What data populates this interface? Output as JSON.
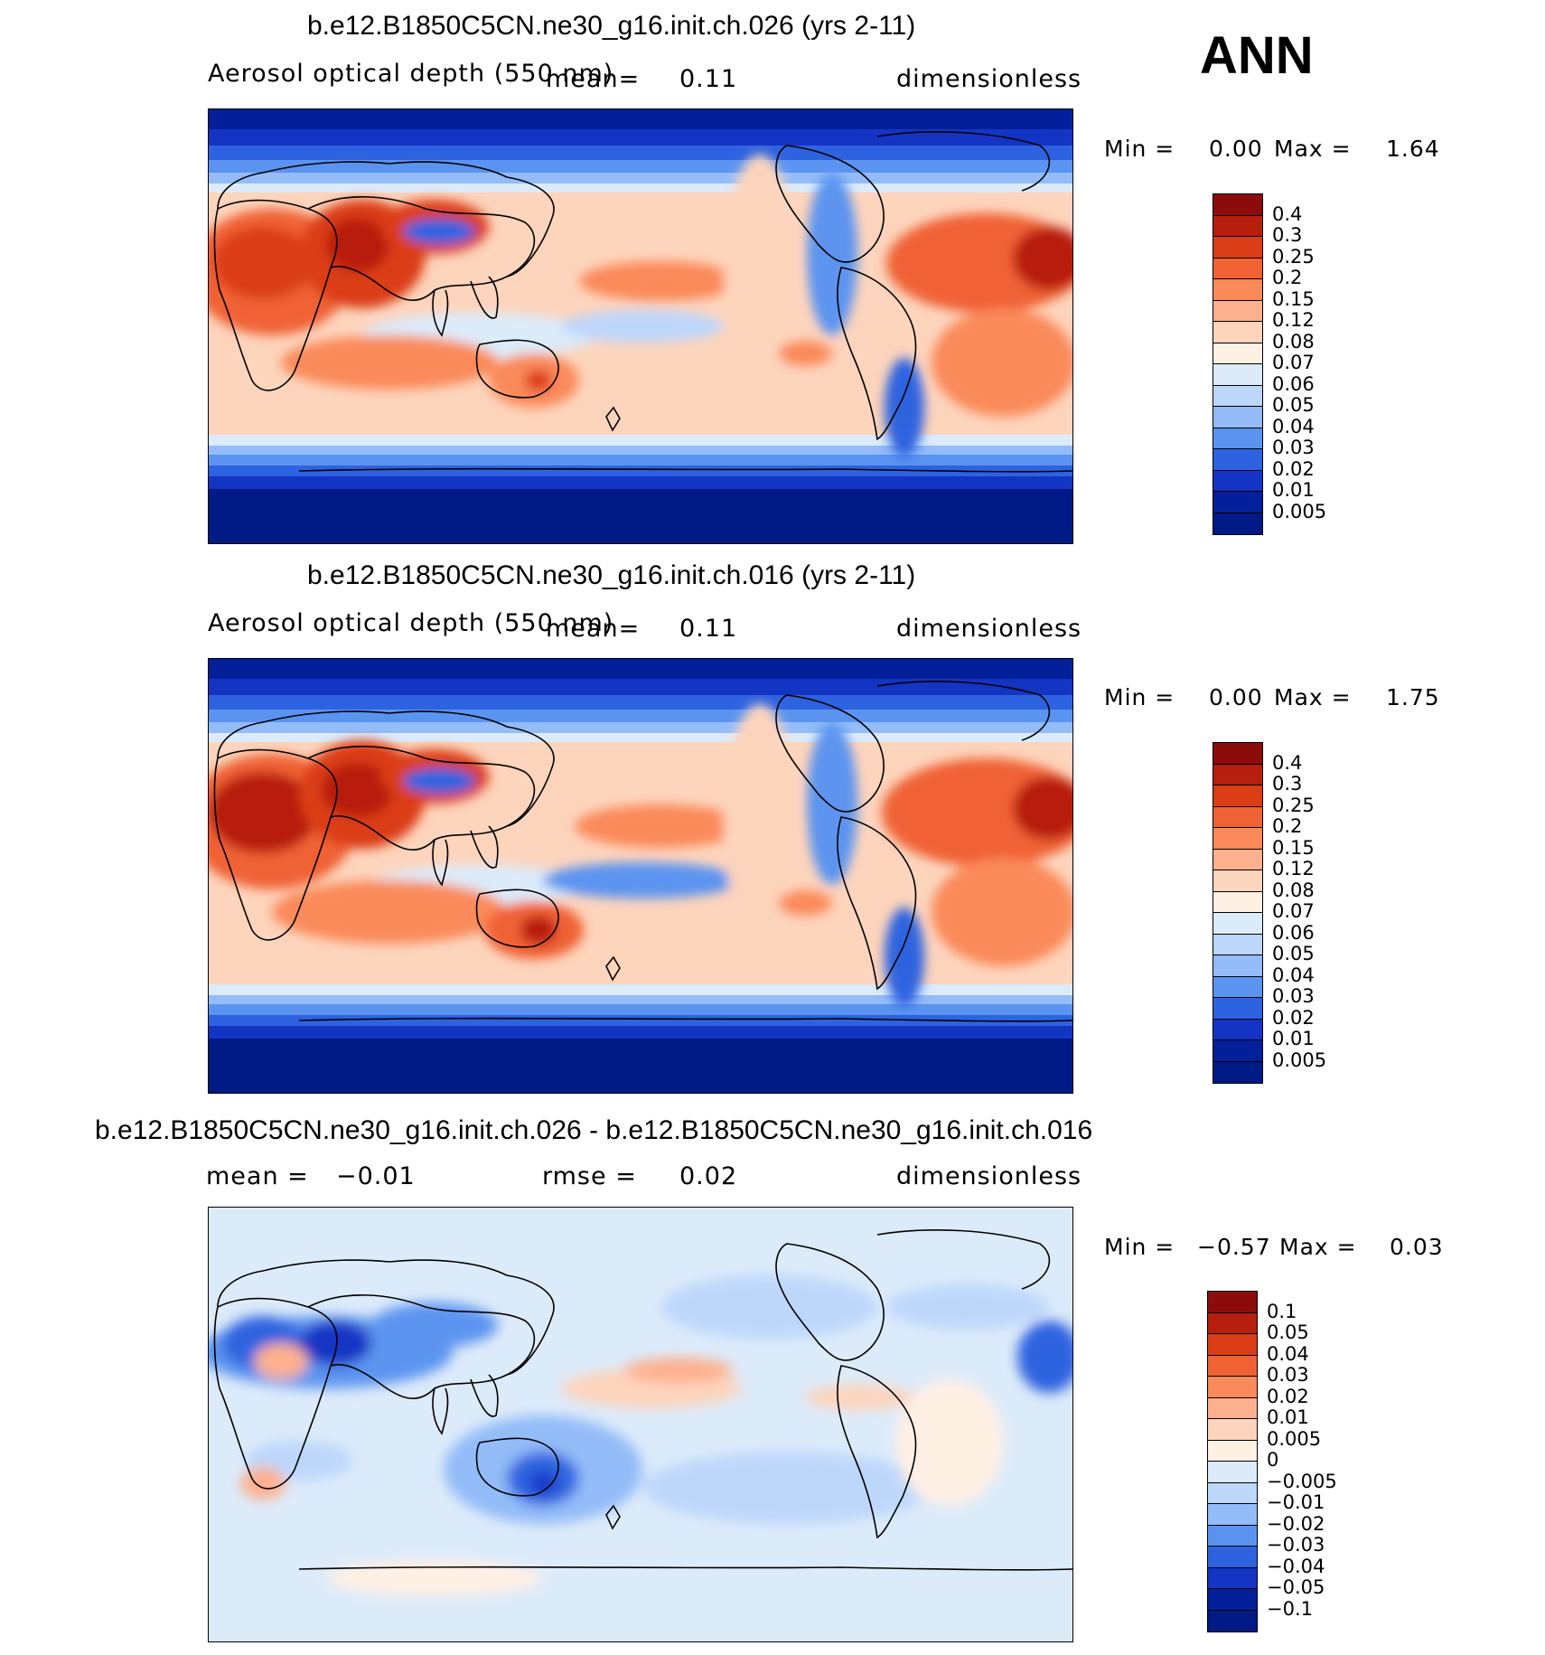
{
  "season": "ANN",
  "panels": [
    {
      "title": "b.e12.B1850C5CN.ne30_g16.init.ch.026 (yrs 2-11)",
      "variable": "Aerosol optical depth (550 nm)",
      "stat1": "mean=",
      "stat1_value": "0.11",
      "units": "dimensionless",
      "min_label": "Min =",
      "min_value": "0.00",
      "max_label": "Max =",
      "max_value": "1.64",
      "levels": [
        "0.4",
        "0.3",
        "0.25",
        "0.2",
        "0.15",
        "0.12",
        "0.08",
        "0.07",
        "0.06",
        "0.05",
        "0.04",
        "0.03",
        "0.02",
        "0.01",
        "0.005"
      ],
      "colors": [
        "#8c0c0c",
        "#b81e0c",
        "#db3d16",
        "#f06234",
        "#fa8a5a",
        "#fdb08e",
        "#fdd4bc",
        "#fff0e4",
        "#dcebfa",
        "#bdd7fb",
        "#93bcf8",
        "#5b94f0",
        "#2d63e0",
        "#1434c4",
        "#03209a",
        "#001a86"
      ]
    },
    {
      "title": "b.e12.B1850C5CN.ne30_g16.init.ch.016 (yrs 2-11)",
      "variable": "Aerosol optical depth (550 nm)",
      "stat1": "mean=",
      "stat1_value": "0.11",
      "units": "dimensionless",
      "min_label": "Min =",
      "min_value": "0.00",
      "max_label": "Max =",
      "max_value": "1.75",
      "levels": [
        "0.4",
        "0.3",
        "0.25",
        "0.2",
        "0.15",
        "0.12",
        "0.08",
        "0.07",
        "0.06",
        "0.05",
        "0.04",
        "0.03",
        "0.02",
        "0.01",
        "0.005"
      ],
      "colors": [
        "#8c0c0c",
        "#b81e0c",
        "#db3d16",
        "#f06234",
        "#fa8a5a",
        "#fdb08e",
        "#fdd4bc",
        "#fff0e4",
        "#dcebfa",
        "#bdd7fb",
        "#93bcf8",
        "#5b94f0",
        "#2d63e0",
        "#1434c4",
        "#03209a",
        "#001a86"
      ]
    },
    {
      "title": "b.e12.B1850C5CN.ne30_g16.init.ch.026 - b.e12.B1850C5CN.ne30_g16.init.ch.016",
      "stat1": "mean =",
      "stat1_value": "−0.01",
      "stat2": "rmse =",
      "stat2_value": "0.02",
      "units": "dimensionless",
      "min_label": "Min =",
      "min_value": "−0.57",
      "max_label": "Max =",
      "max_value": "0.03",
      "levels": [
        "0.1",
        "0.05",
        "0.04",
        "0.03",
        "0.02",
        "0.01",
        "0.005",
        "0",
        "−0.005",
        "−0.01",
        "−0.02",
        "−0.03",
        "−0.04",
        "−0.05",
        "−0.1"
      ],
      "colors": [
        "#8c0c0c",
        "#b81e0c",
        "#db3d16",
        "#f06234",
        "#fa8a5a",
        "#fdb08e",
        "#fdd4bc",
        "#fff0e4",
        "#dcebfa",
        "#bdd7fb",
        "#93bcf8",
        "#5b94f0",
        "#2d63e0",
        "#1434c4",
        "#03209a",
        "#001a86"
      ]
    }
  ]
}
